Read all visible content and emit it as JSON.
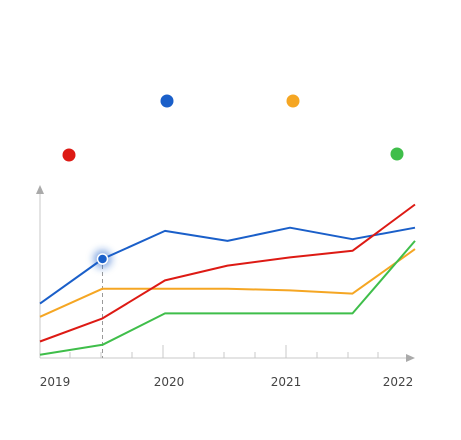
{
  "chart_data": {
    "type": "line",
    "x_ticks": [
      "2019",
      "2020",
      "2021",
      "2022"
    ],
    "x": [
      2019.0,
      2019.5,
      2020.0,
      2020.5,
      2021.0,
      2021.5,
      2022.0
    ],
    "ylim": [
      0,
      100
    ],
    "grid": false,
    "legend": "markers above chart, no labels",
    "highlight": {
      "series_index": 0,
      "x": 2019.5,
      "y": 60
    },
    "series": [
      {
        "color": "#1a5fc9",
        "values": [
          33,
          60,
          77,
          71,
          79,
          72,
          79
        ]
      },
      {
        "color": "#f5a623",
        "values": [
          25,
          42,
          42,
          42,
          41,
          39,
          66
        ]
      },
      {
        "color": "#dd1a14",
        "values": [
          10,
          24,
          47,
          56,
          61,
          65,
          93
        ]
      },
      {
        "color": "#3fbe4a",
        "values": [
          2,
          8,
          27,
          27,
          27,
          27,
          71
        ]
      }
    ],
    "legend_markers": [
      {
        "series_index": 0,
        "color": "#1a5fc9"
      },
      {
        "series_index": 1,
        "color": "#f5a623"
      },
      {
        "series_index": 2,
        "color": "#dd1a14"
      },
      {
        "series_index": 3,
        "color": "#3fbe4a"
      }
    ]
  }
}
